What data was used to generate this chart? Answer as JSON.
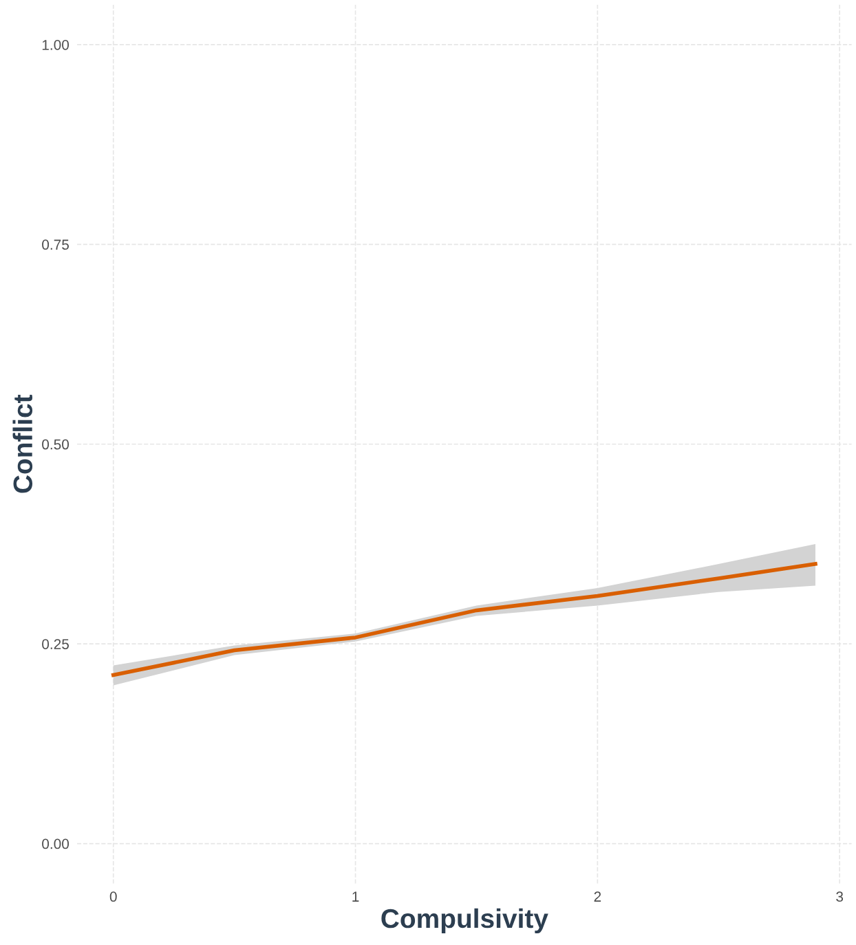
{
  "chart_data": {
    "type": "line",
    "xlabel": "Compulsivity",
    "ylabel": "Conflict",
    "x": [
      0,
      0.5,
      1,
      1.5,
      2,
      2.5,
      2.9
    ],
    "series": [
      {
        "color": "#d95f02",
        "values": [
          0.211,
          0.242,
          0.258,
          0.292,
          0.31,
          0.332,
          0.35
        ],
        "lower": [
          0.198,
          0.236,
          0.253,
          0.285,
          0.298,
          0.315,
          0.323
        ],
        "upper": [
          0.223,
          0.248,
          0.263,
          0.298,
          0.32,
          0.35,
          0.375
        ]
      }
    ],
    "xlim": [
      -0.15,
      3.05
    ],
    "xticks": [
      0,
      1,
      2,
      3
    ],
    "ylim": [
      -0.05,
      1.05
    ],
    "yticks": [
      {
        "value": 0,
        "label": "0.00"
      },
      {
        "value": 0.25,
        "label": "0.25"
      },
      {
        "value": 0.5,
        "label": "0.50"
      },
      {
        "value": 0.75,
        "label": "0.75"
      },
      {
        "value": 1,
        "label": "1.00"
      }
    ],
    "grid": true,
    "line_style": "solid"
  }
}
